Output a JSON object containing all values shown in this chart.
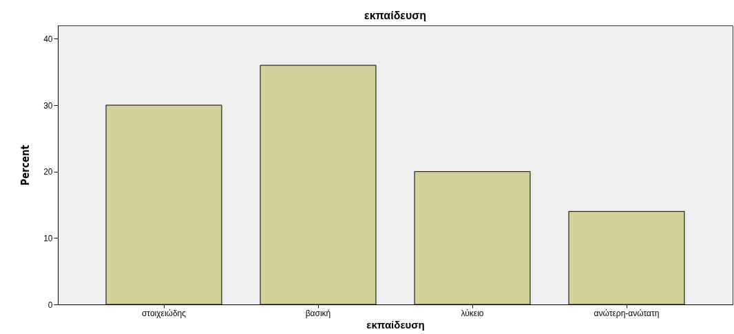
{
  "chart_data": {
    "type": "bar",
    "title": "εκπαίδευση",
    "xlabel": "εκπαίδευση",
    "ylabel": "Percent",
    "categories": [
      "στοιχειώδης",
      "βασική",
      "λύκειο",
      "ανώτερη-ανώτατη"
    ],
    "values": [
      30,
      36,
      20,
      14
    ],
    "color": "#d3cf98",
    "ylim": [
      0,
      42
    ],
    "yticks": [
      0,
      10,
      20,
      30,
      40
    ]
  }
}
